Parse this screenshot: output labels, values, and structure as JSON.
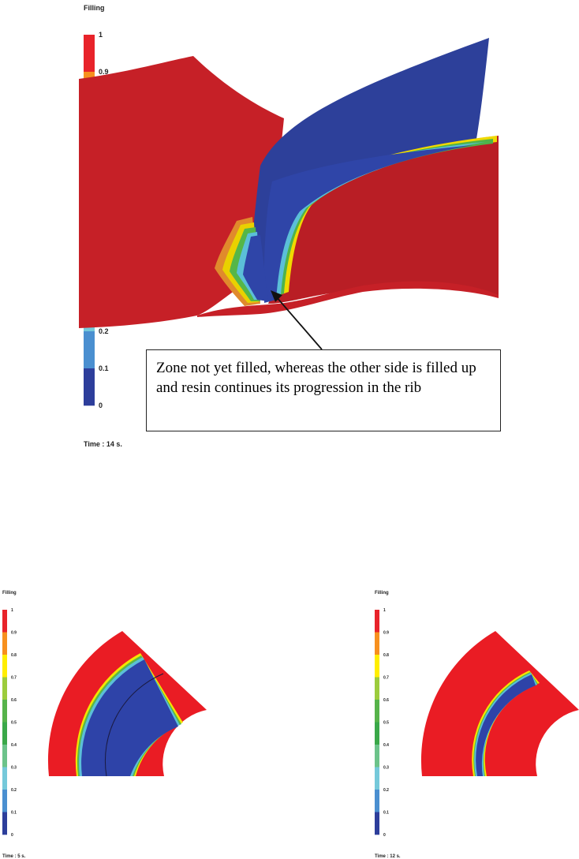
{
  "main": {
    "scale_title": "Filling",
    "time_label": "Time : 14 s.",
    "annotation": "Zone not yet filled, whereas the other side is filled up and resin continues its progression in the rib"
  },
  "left_panel": {
    "scale_title": "Filling",
    "time_label": "Time : 5 s."
  },
  "right_panel": {
    "scale_title": "Filling",
    "time_label": "Time : 12 s."
  },
  "scale": {
    "ticks": [
      "1",
      "0.9",
      "0.8",
      "0.7",
      "0.6",
      "0.5",
      "0.4",
      "0.3",
      "0.2",
      "0.1",
      "0"
    ],
    "colors": [
      "#e8232a",
      "#f7901e",
      "#ffee00",
      "#9ccc3c",
      "#56b34a",
      "#3aa849",
      "#6cc38a",
      "#75c9da",
      "#4a8fd0",
      "#2d3e9b"
    ]
  },
  "colors": {
    "filled": "#c62027",
    "empty_rib": "#2e3d96",
    "flat_filled": "#ea1c24",
    "flat_empty": "#2e43a8",
    "front_cyan": "#5bbfd8",
    "front_green": "#5ab848",
    "front_yellow": "#f3e500"
  }
}
